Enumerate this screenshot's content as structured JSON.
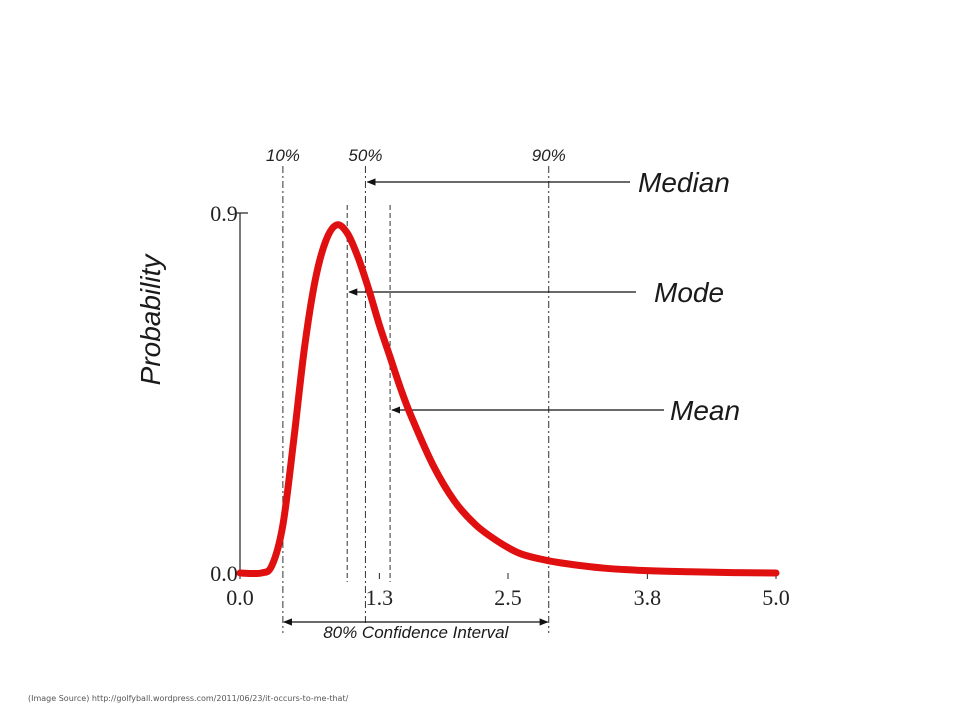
{
  "chart_data": {
    "type": "line",
    "ylabel": "Probability",
    "xlabel": "",
    "xlim": [
      0.0,
      5.0
    ],
    "ylim": [
      0.0,
      0.9
    ],
    "x_ticks": [
      "0.0",
      "1.3",
      "2.5",
      "3.8",
      "5.0"
    ],
    "y_ticks": [
      "0.9",
      "0.0"
    ],
    "series": [
      {
        "color": "#e01010",
        "x": [
          0.0,
          0.2,
          0.3,
          0.4,
          0.5,
          0.6,
          0.7,
          0.8,
          0.9,
          1.0,
          1.1,
          1.2,
          1.3,
          1.4,
          1.5,
          1.6,
          1.8,
          2.0,
          2.2,
          2.4,
          2.6,
          2.8,
          3.0,
          3.4,
          3.8,
          4.2,
          4.6,
          5.0
        ],
        "y": [
          0.0,
          0.0,
          0.02,
          0.12,
          0.33,
          0.56,
          0.73,
          0.83,
          0.87,
          0.85,
          0.79,
          0.71,
          0.62,
          0.54,
          0.46,
          0.39,
          0.27,
          0.18,
          0.12,
          0.08,
          0.05,
          0.035,
          0.025,
          0.012,
          0.006,
          0.003,
          0.001,
          0.0
        ]
      }
    ],
    "percentiles": [
      {
        "label": "10%",
        "x": 0.4
      },
      {
        "label": "50%",
        "x": 1.17
      },
      {
        "label": "90%",
        "x": 2.88
      }
    ],
    "markers": [
      {
        "name": "mode",
        "x": 1.0
      },
      {
        "name": "median",
        "x": 1.17
      },
      {
        "name": "mean",
        "x": 1.4
      }
    ],
    "annotations": {
      "median": "Median",
      "mode": "Mode",
      "mean": "Mean"
    },
    "confidence_interval": {
      "label": "80% Confidence Interval",
      "from": 0.4,
      "to": 2.88
    }
  },
  "footer": {
    "source": "(Image Source) http://golfyball.wordpress.com/2011/06/23/it-occurs-to-me-that/"
  }
}
